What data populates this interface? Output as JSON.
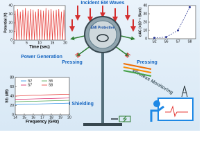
{
  "chart_data": [
    {
      "type": "line",
      "xlabel": "Time (sec)",
      "ylabel": "Potential (V)",
      "x": [
        0,
        0.5,
        1,
        1.5,
        2,
        2.5,
        3,
        3.5,
        4,
        4.5,
        5,
        5.5,
        6,
        6.5,
        7,
        7.5,
        8,
        8.5,
        9,
        9.5,
        10,
        10.5,
        11,
        11.5,
        12,
        12.5,
        13,
        13.5,
        14,
        14.5,
        15,
        15.5,
        16,
        16.5,
        17,
        17.5,
        18,
        18.5,
        19,
        19.5,
        20
      ],
      "series": [
        {
          "color": "#e53935",
          "values": [
            0,
            34,
            0,
            36,
            0,
            33,
            0,
            35,
            0,
            37,
            0,
            34,
            0,
            36,
            0,
            35,
            0,
            33,
            0,
            36,
            0,
            35,
            0,
            34,
            0,
            37,
            0,
            35,
            0,
            36,
            0,
            34,
            0,
            35,
            0,
            36,
            0,
            33,
            0,
            35,
            0
          ]
        }
      ],
      "xlim": [
        0,
        20
      ],
      "xticks": [
        0,
        5,
        10,
        15,
        20
      ],
      "ylim": [
        0,
        40
      ],
      "yticks": [
        0,
        10,
        20,
        30,
        40
      ]
    },
    {
      "type": "line",
      "ylabel": "σAC (×10⁻⁵ S/cm)",
      "linestyle": "dashed",
      "markers": true,
      "categories": [
        "S2",
        "S6",
        "S7",
        "S8"
      ],
      "series": [
        {
          "color": "#283593",
          "values": [
            1,
            2,
            10,
            38
          ]
        }
      ],
      "ylim": [
        0,
        40
      ],
      "yticks": [
        0,
        10,
        20,
        30,
        40
      ]
    },
    {
      "type": "line",
      "xlabel": "Frequency (GHz)",
      "ylabel": "SEₜ (dB)",
      "legend": "upper",
      "x": [
        14,
        16,
        18,
        20
      ],
      "series": [
        {
          "name": "S2",
          "color": "#1e88e5",
          "values": [
            22,
            23,
            24,
            25
          ]
        },
        {
          "name": "S6",
          "color": "#43a047",
          "values": [
            28,
            29,
            30,
            31
          ]
        },
        {
          "name": "S7",
          "color": "#d81b60",
          "values": [
            33,
            34,
            35,
            36
          ]
        },
        {
          "name": "S8",
          "color": "#e53935",
          "values": [
            40,
            42,
            43,
            44
          ]
        }
      ],
      "xlim": [
        14,
        20
      ],
      "xticks": [
        14,
        15,
        16,
        17,
        18,
        19,
        20
      ],
      "ylim": [
        0,
        80
      ],
      "yticks": [
        0,
        20,
        40,
        60,
        80
      ]
    }
  ],
  "labels": {
    "incident": "Incident EM Waves",
    "power": "Power Generation",
    "pressing_left": "Pressing",
    "pressing_right": "Pressing",
    "protective": "EMI Protective",
    "shielding": "EMI Shielding",
    "wireless": "Wireless Monitoring"
  }
}
